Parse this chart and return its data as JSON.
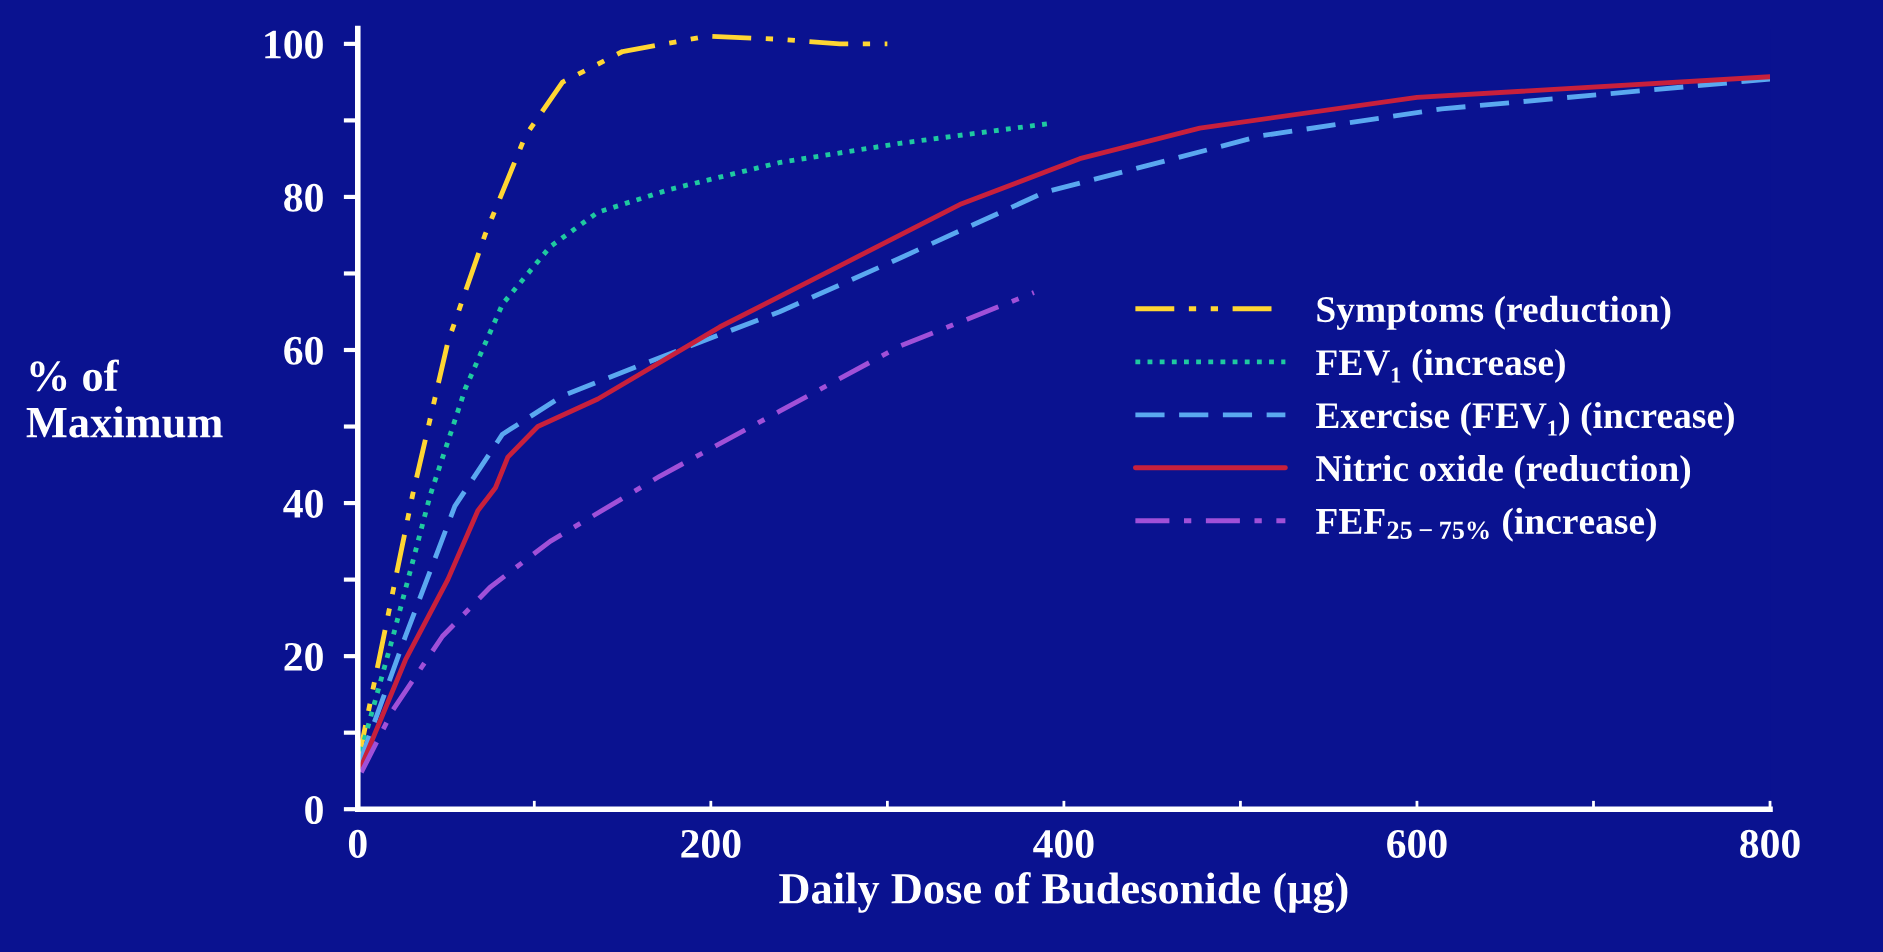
{
  "chart_data": {
    "type": "line",
    "xlabel": "Daily Dose of Budesonide (μg)",
    "ylabel": "% of\nMaximum",
    "xlim": [
      0,
      800
    ],
    "ylim": [
      0,
      102
    ],
    "xticks": [
      0,
      {
        "value": 100,
        "label": null
      },
      200,
      {
        "value": 300,
        "label": null
      },
      400,
      {
        "value": 500,
        "label": null
      },
      600,
      {
        "value": 700,
        "label": null
      },
      800
    ],
    "yticks": [
      0,
      {
        "value": 10,
        "label": null
      },
      20,
      {
        "value": 30,
        "label": null
      },
      40,
      {
        "value": 50,
        "label": null
      },
      60,
      {
        "value": 70,
        "label": null
      },
      80,
      {
        "value": 90,
        "label": null
      },
      100
    ],
    "grid": false,
    "legend": "right",
    "series": [
      {
        "name": "Symptoms (reduction)",
        "color": "#ffd633",
        "line_style": "dashdotdot",
        "x": [
          0,
          12,
          31,
          51,
          72,
          95,
          116,
          150,
          198,
          239,
          273,
          300
        ],
        "values": [
          6,
          19.5,
          41,
          61,
          75,
          88,
          95,
          99,
          101,
          100.6,
          100,
          100
        ]
      },
      {
        "name": "FEV₁ (increase)",
        "color": "#1fc9a0",
        "line_style": "dotted",
        "x": [
          0,
          20,
          41,
          61,
          82,
          109,
          136,
          177,
          239,
          307,
          392
        ],
        "values": [
          6,
          22.6,
          41,
          55,
          66,
          73.5,
          78,
          81,
          84.5,
          87,
          89.6
        ]
      },
      {
        "name": "Exercise (FEV₁) (increase)",
        "color": "#5aa8f0",
        "line_style": "dashed",
        "x": [
          1,
          27,
          55,
          82,
          116,
          171,
          239,
          307,
          389,
          512,
          614,
          800
        ],
        "values": [
          6,
          22.6,
          39.6,
          49,
          54,
          59,
          65,
          72,
          80.6,
          88,
          91.5,
          95.4
        ]
      },
      {
        "name": "Nitric oxide (reduction)",
        "color": "#c8203c",
        "line_style": "solid",
        "x": [
          2,
          27,
          51,
          68,
          78,
          85,
          102,
          136,
          205,
          273,
          341,
          409,
          477,
          600,
          800
        ],
        "values": [
          5.6,
          19.5,
          30,
          39,
          42,
          46,
          50,
          53.6,
          63,
          71,
          79,
          85,
          89,
          93,
          95.7
        ]
      },
      {
        "name": "FEF$_{25−75%}$ (increase)",
        "color": "#a050d8",
        "line_style": "dashdot",
        "x": [
          2,
          20,
          48,
          75,
          109,
          171,
          239,
          307,
          383
        ],
        "values": [
          4.8,
          13,
          22.6,
          29,
          35,
          43.5,
          52,
          60.5,
          67.5
        ]
      }
    ]
  }
}
